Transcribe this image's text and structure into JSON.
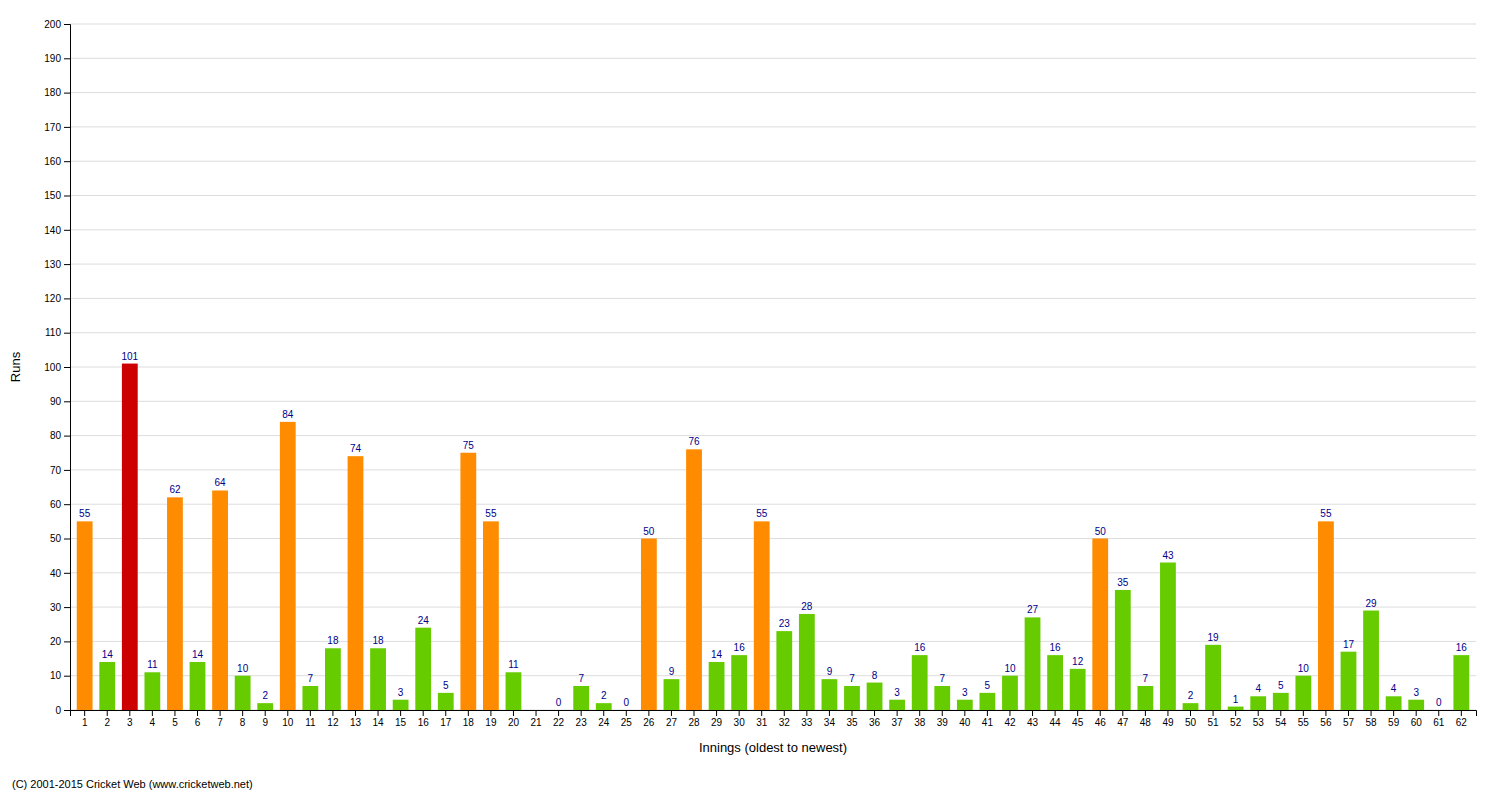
{
  "chart_data": {
    "type": "bar",
    "xlabel": "Innings (oldest to newest)",
    "ylabel": "Runs",
    "annotations": [
      "(C) 2001-2015 Cricket Web (www.cricketweb.net)"
    ],
    "categories": [
      "1",
      "2",
      "3",
      "4",
      "5",
      "6",
      "7",
      "8",
      "9",
      "10",
      "11",
      "12",
      "13",
      "14",
      "15",
      "16",
      "17",
      "18",
      "19",
      "20",
      "21",
      "22",
      "23",
      "24",
      "25",
      "26",
      "27",
      "28",
      "29",
      "30",
      "31",
      "32",
      "33",
      "34",
      "35",
      "36",
      "37",
      "38",
      "39",
      "40",
      "41",
      "42",
      "43",
      "44",
      "45",
      "46",
      "47",
      "48",
      "49",
      "50",
      "51",
      "52",
      "53",
      "54",
      "55",
      "56",
      "57",
      "58",
      "59",
      "60",
      "61",
      "62"
    ],
    "values": [
      55,
      14,
      101,
      11,
      62,
      14,
      64,
      10,
      2,
      84,
      7,
      18,
      74,
      18,
      3,
      24,
      5,
      75,
      55,
      11,
      0,
      0,
      7,
      2,
      0,
      50,
      9,
      76,
      14,
      16,
      55,
      23,
      28,
      9,
      7,
      8,
      3,
      16,
      7,
      3,
      5,
      10,
      27,
      16,
      12,
      50,
      35,
      7,
      43,
      2,
      19,
      1,
      4,
      5,
      10,
      55,
      17,
      29,
      4,
      3,
      0,
      16
    ],
    "value_labels": [
      "55",
      "14",
      "101",
      "11",
      "62",
      "14",
      "64",
      "10",
      "2",
      "84",
      "7",
      "18",
      "74",
      "18",
      "3",
      "24",
      "5",
      "75",
      "55",
      "11",
      null,
      "0",
      "7",
      "2",
      "0",
      "50",
      "9",
      "76",
      "14",
      "16",
      "55",
      "23",
      "28",
      "9",
      "7",
      "8",
      "3",
      "16",
      "7",
      "3",
      "5",
      "10",
      "27",
      "16",
      "12",
      "50",
      "35",
      "7",
      "43",
      "2",
      "19",
      "1",
      "4",
      "5",
      "10",
      "55",
      "17",
      "29",
      "4",
      "3",
      "0",
      "16"
    ],
    "data_labels": true,
    "colors": [
      "#FF8C00",
      "#66CC00",
      "#CC0000",
      "#66CC00",
      "#FF8C00",
      "#66CC00",
      "#FF8C00",
      "#66CC00",
      "#66CC00",
      "#FF8C00",
      "#66CC00",
      "#66CC00",
      "#FF8C00",
      "#66CC00",
      "#66CC00",
      "#66CC00",
      "#66CC00",
      "#FF8C00",
      "#FF8C00",
      "#66CC00",
      "#66CC00",
      "#66CC00",
      "#66CC00",
      "#66CC00",
      "#66CC00",
      "#FF8C00",
      "#66CC00",
      "#FF8C00",
      "#66CC00",
      "#66CC00",
      "#FF8C00",
      "#66CC00",
      "#66CC00",
      "#66CC00",
      "#66CC00",
      "#66CC00",
      "#66CC00",
      "#66CC00",
      "#66CC00",
      "#66CC00",
      "#66CC00",
      "#66CC00",
      "#66CC00",
      "#66CC00",
      "#66CC00",
      "#FF8C00",
      "#66CC00",
      "#66CC00",
      "#66CC00",
      "#66CC00",
      "#66CC00",
      "#66CC00",
      "#66CC00",
      "#66CC00",
      "#66CC00",
      "#FF8C00",
      "#66CC00",
      "#66CC00",
      "#66CC00",
      "#66CC00",
      "#66CC00",
      "#66CC00"
    ],
    "ylim": [
      0,
      200
    ],
    "yticks": [
      0,
      10,
      20,
      30,
      40,
      50,
      60,
      70,
      80,
      90,
      100,
      110,
      120,
      130,
      140,
      150,
      160,
      170,
      180,
      190,
      200
    ],
    "grid": true
  }
}
